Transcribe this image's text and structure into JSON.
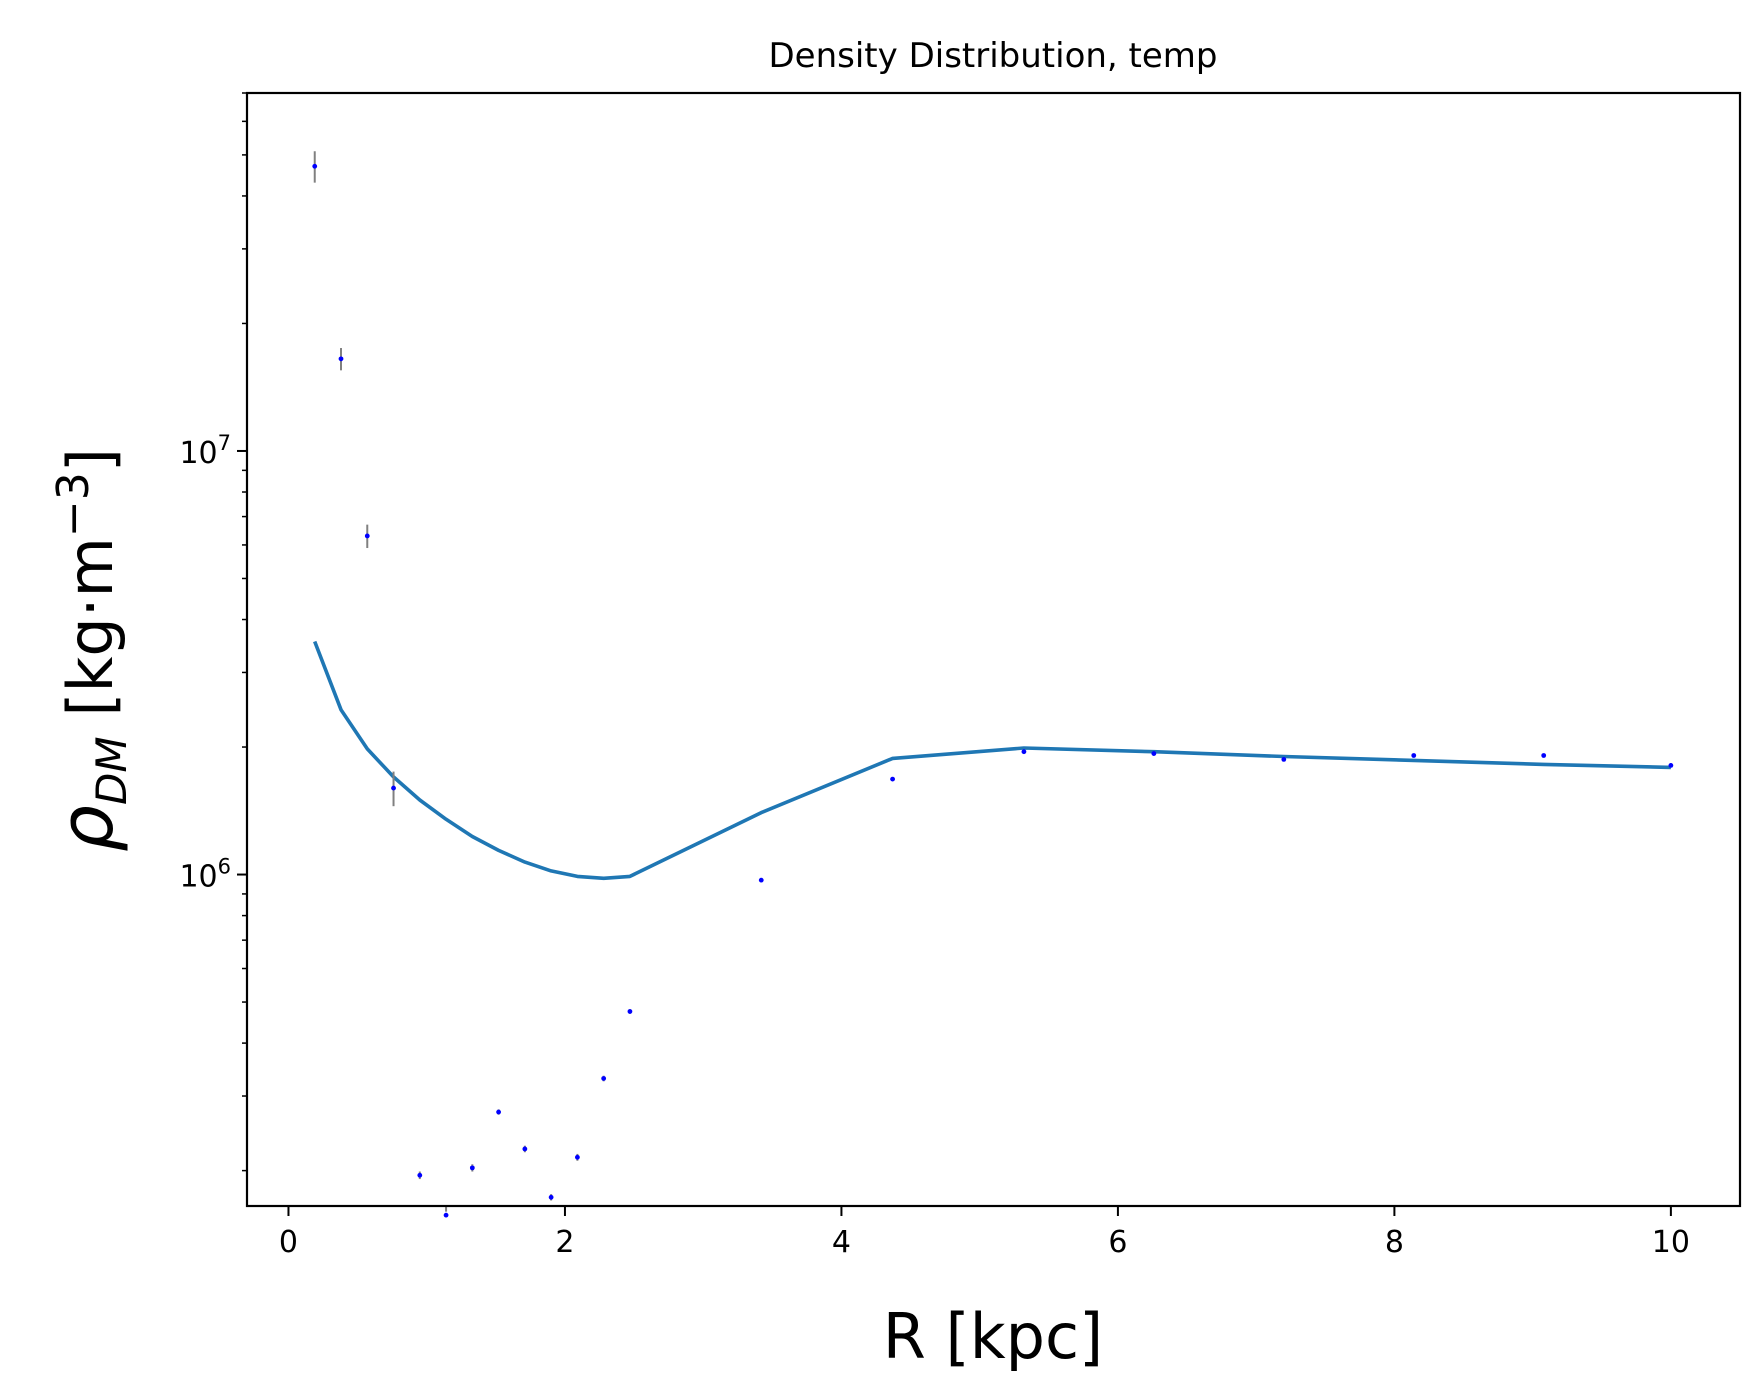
{
  "chart_data": {
    "type": "scatter",
    "title": "Density Distribution, temp",
    "xlabel": "R [kpc]",
    "ylabel_main": "ρ",
    "ylabel_sub": "DM",
    "ylabel_units": "[kg·m",
    "ylabel_exp": "−3",
    "ylabel_close": "]",
    "xlim": [
      -0.3,
      10.5
    ],
    "ylim": [
      165000,
      70000000
    ],
    "yscale": "log",
    "xticks": [
      0,
      2,
      4,
      6,
      8,
      10
    ],
    "xtick_labels": [
      "0",
      "2",
      "4",
      "6",
      "8",
      "10"
    ],
    "yticks_major": [
      {
        "value": 1000000,
        "base": "10",
        "exp": "6"
      },
      {
        "value": 10000000,
        "base": "10",
        "exp": "7"
      }
    ],
    "grid": false,
    "series": [
      {
        "kind": "points",
        "color": "#0000ff",
        "errbar_color": "#808080",
        "x": [
          0.19,
          0.38,
          0.57,
          0.76,
          0.95,
          1.14,
          1.33,
          1.52,
          1.71,
          1.9,
          2.09,
          2.28,
          2.47,
          3.42,
          4.37,
          5.32,
          6.26,
          7.2,
          8.14,
          9.08,
          10.0
        ],
        "y": [
          47000000,
          16500000,
          6300000,
          1600000,
          195000,
          157000,
          203000,
          275000,
          225000,
          173000,
          215000,
          330000,
          475000,
          970000,
          1680000,
          1950000,
          1930000,
          1870000,
          1910000,
          1910000,
          1810000
        ],
        "yerr": [
          4000000,
          1000000,
          400000,
          150000,
          4000,
          3000,
          4000,
          4000,
          4000,
          3000,
          4000,
          5000,
          6000,
          10000,
          12000,
          12000,
          12000,
          12000,
          12000,
          12000,
          12000
        ]
      },
      {
        "kind": "line",
        "color": "#1f77b4",
        "x": [
          0.19,
          0.38,
          0.57,
          0.76,
          0.95,
          1.14,
          1.33,
          1.52,
          1.71,
          1.9,
          2.09,
          2.28,
          2.47,
          3.42,
          4.37,
          5.32,
          6.26,
          7.2,
          8.14,
          9.08,
          10.0
        ],
        "y": [
          3550000,
          2450000,
          1980000,
          1700000,
          1500000,
          1350000,
          1230000,
          1140000,
          1070000,
          1020000,
          990000,
          980000,
          990000,
          1400000,
          1880000,
          1990000,
          1950000,
          1900000,
          1860000,
          1820000,
          1790000
        ]
      }
    ]
  }
}
